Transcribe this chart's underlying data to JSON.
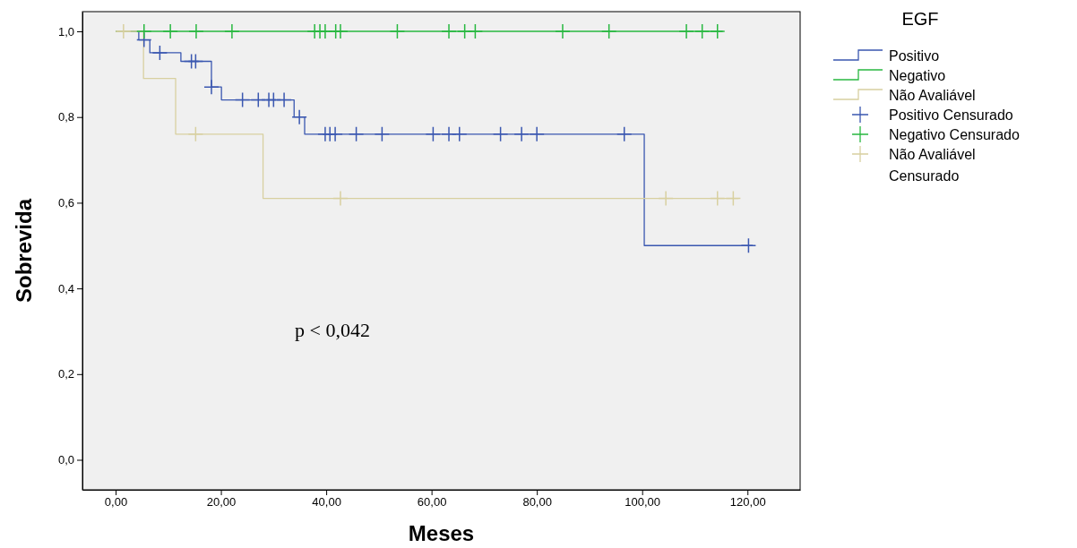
{
  "chart_data": {
    "type": "step",
    "xlabel": "Meses",
    "ylabel": "Sobrevida",
    "legend_title": "EGF",
    "legend": "right",
    "grid": false,
    "xlim": [
      -6.3,
      130
    ],
    "ylim": [
      -0.07,
      1.046
    ],
    "xticks": [
      {
        "value": 0,
        "label": "0,00"
      },
      {
        "value": 20,
        "label": "20,00"
      },
      {
        "value": 40,
        "label": "40,00"
      },
      {
        "value": 60,
        "label": "60,00"
      },
      {
        "value": 80,
        "label": "80,00"
      },
      {
        "value": 100,
        "label": "100,00"
      },
      {
        "value": 120,
        "label": "120,00"
      }
    ],
    "yticks": [
      {
        "value": 0,
        "label": "0,0"
      },
      {
        "value": 0.2,
        "label": "0,2"
      },
      {
        "value": 0.4,
        "label": "0,4"
      },
      {
        "value": 0.6,
        "label": "0,6"
      },
      {
        "value": 0.8,
        "label": "0,8"
      },
      {
        "value": 1,
        "label": "1,0"
      }
    ],
    "annotations": [
      "p < 0,042"
    ],
    "series": [
      {
        "name": "Positivo",
        "color": "#3a57b0",
        "x": [
          0,
          4.4,
          6.5,
          12.4,
          18.2,
          20.1,
          33.9,
          35.9,
          100.4,
          121
        ],
        "values": [
          1,
          0.98,
          0.95,
          0.93,
          0.87,
          0.84,
          0.8,
          0.76,
          0.5,
          0.5
        ]
      },
      {
        "name": "Negativo",
        "color": "#28b840",
        "x": [
          0,
          115.3
        ],
        "values": [
          1,
          1
        ]
      },
      {
        "name": "Não Avaliável",
        "color": "#d8d0a0",
        "x": [
          0,
          5.3,
          11.4,
          28,
          118.3
        ],
        "values": [
          1,
          0.89,
          0.76,
          0.61,
          0.61
        ]
      },
      {
        "name": "Positivo Censurado",
        "type": "scatter",
        "marker": "cross",
        "color": "#3a57b0",
        "x": [
          5.4,
          8.4,
          14.4,
          15.2,
          18.2,
          24.1,
          27.1,
          29.1,
          30,
          32,
          34.9,
          39.8,
          40.7,
          41.7,
          45.7,
          50.6,
          60.3,
          63.3,
          65.3,
          73.1,
          77.1,
          80,
          96.6,
          120.2
        ],
        "values": [
          0.98,
          0.95,
          0.93,
          0.93,
          0.87,
          0.84,
          0.84,
          0.84,
          0.84,
          0.84,
          0.8,
          0.76,
          0.76,
          0.76,
          0.76,
          0.76,
          0.76,
          0.76,
          0.76,
          0.76,
          0.76,
          0.76,
          0.76,
          0.5
        ]
      },
      {
        "name": "Negativo Censurado",
        "type": "scatter",
        "marker": "cross",
        "color": "#28b840",
        "x": [
          5.4,
          10.4,
          15.3,
          22.1,
          37.8,
          38.8,
          39.8,
          41.8,
          42.7,
          53.5,
          63.3,
          66.3,
          68.3,
          84.9,
          93.7,
          108.4,
          111.4,
          114.3
        ],
        "values": [
          1,
          1,
          1,
          1,
          1,
          1,
          1,
          1,
          1,
          1,
          1,
          1,
          1,
          1,
          1,
          1,
          1,
          1
        ]
      },
      {
        "name": "Não Avaliável Censurado",
        "type": "scatter",
        "marker": "cross",
        "color": "#d8d0a0",
        "x": [
          1.5,
          15.2,
          42.7,
          104.5,
          114.3,
          117.3
        ],
        "values": [
          1,
          0.76,
          0.61,
          0.61,
          0.61,
          0.61
        ]
      }
    ]
  }
}
